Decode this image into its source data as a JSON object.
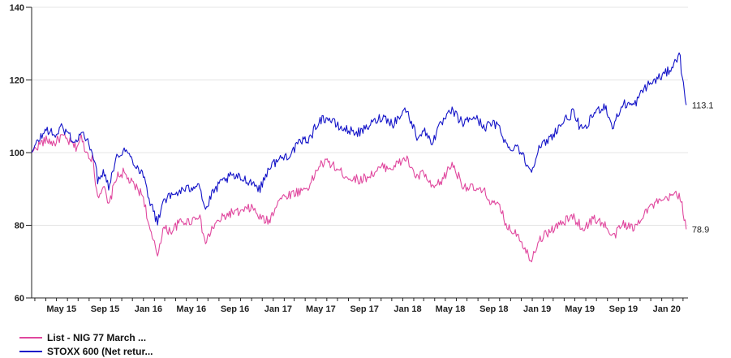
{
  "chart_data": {
    "type": "line",
    "title": "",
    "xlabel": "",
    "ylabel": "",
    "ylim": [
      60,
      140
    ],
    "y_ticks": [
      60,
      80,
      100,
      120,
      140
    ],
    "y_tick_labels": [
      "60",
      "80",
      "100",
      "120",
      "140"
    ],
    "x_tick_labels": [
      "May 15",
      "Sep 15",
      "Jan 16",
      "May 16",
      "Sep 16",
      "Jan 17",
      "May 17",
      "Sep 17",
      "Jan 18",
      "May 18",
      "Sep 18",
      "Jan 19",
      "May 19",
      "Sep 19",
      "Jan 20"
    ],
    "x_tick_dates": [
      "2015-05",
      "2015-09",
      "2016-01",
      "2016-05",
      "2016-09",
      "2017-01",
      "2017-05",
      "2017-09",
      "2018-01",
      "2018-05",
      "2018-09",
      "2019-01",
      "2019-05",
      "2019-09",
      "2020-01"
    ],
    "xlim": [
      "2015-02-20",
      "2020-03-15"
    ],
    "grid": true,
    "legend_position": "bottom-left",
    "series": [
      {
        "name": "List - NIG 77 March ...",
        "color": "#e0479e",
        "end_label": "78.9",
        "points": [
          [
            "2015-02-20",
            100
          ],
          [
            "2015-03-15",
            102.5
          ],
          [
            "2015-04-05",
            103.5
          ],
          [
            "2015-04-25",
            102.5
          ],
          [
            "2015-05-15",
            104.5
          ],
          [
            "2015-06-05",
            103
          ],
          [
            "2015-06-25",
            101.5
          ],
          [
            "2015-07-10",
            104
          ],
          [
            "2015-07-25",
            100
          ],
          [
            "2015-08-10",
            98.5
          ],
          [
            "2015-08-25",
            88
          ],
          [
            "2015-09-10",
            91
          ],
          [
            "2015-09-25",
            85
          ],
          [
            "2015-10-15",
            93
          ],
          [
            "2015-11-05",
            94.5
          ],
          [
            "2015-11-25",
            92
          ],
          [
            "2015-12-15",
            90
          ],
          [
            "2016-01-01",
            88
          ],
          [
            "2016-01-20",
            78
          ],
          [
            "2016-02-10",
            72
          ],
          [
            "2016-02-25",
            79
          ],
          [
            "2016-03-20",
            78.5
          ],
          [
            "2016-04-15",
            81
          ],
          [
            "2016-05-10",
            81
          ],
          [
            "2016-06-05",
            83
          ],
          [
            "2016-06-24",
            75
          ],
          [
            "2016-07-15",
            79.5
          ],
          [
            "2016-08-10",
            82
          ],
          [
            "2016-09-05",
            83.5
          ],
          [
            "2016-10-01",
            83.5
          ],
          [
            "2016-11-01",
            85
          ],
          [
            "2016-11-25",
            82
          ],
          [
            "2016-12-20",
            81
          ],
          [
            "2017-01-15",
            87
          ],
          [
            "2017-02-15",
            88.5
          ],
          [
            "2017-03-20",
            89.5
          ],
          [
            "2017-04-15",
            91
          ],
          [
            "2017-05-10",
            96.5
          ],
          [
            "2017-06-05",
            97.5
          ],
          [
            "2017-07-05",
            95
          ],
          [
            "2017-08-05",
            93
          ],
          [
            "2017-09-05",
            92.5
          ],
          [
            "2017-10-05",
            94
          ],
          [
            "2017-11-05",
            96
          ],
          [
            "2017-12-05",
            96
          ],
          [
            "2018-01-10",
            98.5
          ],
          [
            "2018-02-10",
            93
          ],
          [
            "2018-03-01",
            94.5
          ],
          [
            "2018-03-25",
            90
          ],
          [
            "2018-04-20",
            92
          ],
          [
            "2018-05-20",
            97
          ],
          [
            "2018-06-20",
            91
          ],
          [
            "2018-07-20",
            90
          ],
          [
            "2018-08-20",
            89
          ],
          [
            "2018-09-10",
            86
          ],
          [
            "2018-10-01",
            85
          ],
          [
            "2018-10-25",
            79
          ],
          [
            "2018-11-20",
            78
          ],
          [
            "2018-12-27",
            70.5
          ],
          [
            "2019-01-20",
            76
          ],
          [
            "2019-02-20",
            78.5
          ],
          [
            "2019-03-25",
            80.5
          ],
          [
            "2019-04-25",
            82.5
          ],
          [
            "2019-05-25",
            79
          ],
          [
            "2019-06-25",
            82
          ],
          [
            "2019-07-25",
            80
          ],
          [
            "2019-08-15",
            76.5
          ],
          [
            "2019-09-15",
            80.5
          ],
          [
            "2019-10-15",
            79
          ],
          [
            "2019-11-15",
            84
          ],
          [
            "2019-12-15",
            86
          ],
          [
            "2020-01-15",
            87
          ],
          [
            "2020-02-10",
            89
          ],
          [
            "2020-02-22",
            88
          ],
          [
            "2020-03-01",
            84
          ],
          [
            "2020-03-10",
            78.9
          ]
        ]
      },
      {
        "name": "STOXX 600 (Net retur...",
        "color": "#1414c8",
        "end_label": "113.1",
        "points": [
          [
            "2015-02-20",
            100
          ],
          [
            "2015-03-15",
            104
          ],
          [
            "2015-04-05",
            106.5
          ],
          [
            "2015-04-25",
            104.5
          ],
          [
            "2015-05-15",
            107
          ],
          [
            "2015-06-05",
            105
          ],
          [
            "2015-06-25",
            102.5
          ],
          [
            "2015-07-10",
            106
          ],
          [
            "2015-07-25",
            103
          ],
          [
            "2015-08-10",
            101
          ],
          [
            "2015-08-25",
            92.5
          ],
          [
            "2015-09-10",
            95
          ],
          [
            "2015-09-25",
            91
          ],
          [
            "2015-10-15",
            98
          ],
          [
            "2015-11-05",
            101
          ],
          [
            "2015-11-25",
            99
          ],
          [
            "2015-12-15",
            96
          ],
          [
            "2016-01-01",
            94
          ],
          [
            "2016-01-20",
            86.5
          ],
          [
            "2016-02-10",
            80.5
          ],
          [
            "2016-02-25",
            87
          ],
          [
            "2016-03-20",
            88
          ],
          [
            "2016-04-15",
            89.5
          ],
          [
            "2016-05-10",
            90
          ],
          [
            "2016-06-05",
            92
          ],
          [
            "2016-06-24",
            84
          ],
          [
            "2016-07-15",
            89
          ],
          [
            "2016-08-10",
            92
          ],
          [
            "2016-09-05",
            93.5
          ],
          [
            "2016-10-01",
            93
          ],
          [
            "2016-11-01",
            92
          ],
          [
            "2016-11-25",
            90
          ],
          [
            "2016-12-20",
            96
          ],
          [
            "2017-01-15",
            98
          ],
          [
            "2017-02-15",
            99.5
          ],
          [
            "2017-03-20",
            103
          ],
          [
            "2017-04-15",
            104
          ],
          [
            "2017-05-10",
            109
          ],
          [
            "2017-06-05",
            109.5
          ],
          [
            "2017-07-05",
            107
          ],
          [
            "2017-08-05",
            106
          ],
          [
            "2017-09-05",
            105.5
          ],
          [
            "2017-10-05",
            108
          ],
          [
            "2017-11-05",
            110
          ],
          [
            "2017-12-05",
            108
          ],
          [
            "2018-01-10",
            112
          ],
          [
            "2018-02-10",
            104.5
          ],
          [
            "2018-03-01",
            106
          ],
          [
            "2018-03-25",
            103
          ],
          [
            "2018-04-20",
            108
          ],
          [
            "2018-05-20",
            111.5
          ],
          [
            "2018-06-20",
            108
          ],
          [
            "2018-07-20",
            110
          ],
          [
            "2018-08-20",
            107
          ],
          [
            "2018-09-10",
            108
          ],
          [
            "2018-10-01",
            107
          ],
          [
            "2018-10-25",
            101
          ],
          [
            "2018-11-20",
            102
          ],
          [
            "2018-12-27",
            95
          ],
          [
            "2019-01-20",
            101
          ],
          [
            "2019-02-20",
            104
          ],
          [
            "2019-03-25",
            108
          ],
          [
            "2019-04-25",
            111
          ],
          [
            "2019-05-25",
            105.5
          ],
          [
            "2019-06-25",
            111
          ],
          [
            "2019-07-25",
            113
          ],
          [
            "2019-08-15",
            107
          ],
          [
            "2019-09-15",
            113.5
          ],
          [
            "2019-10-15",
            113
          ],
          [
            "2019-11-15",
            118
          ],
          [
            "2019-12-15",
            120
          ],
          [
            "2020-01-15",
            122
          ],
          [
            "2020-02-10",
            125
          ],
          [
            "2020-02-19",
            128.5
          ],
          [
            "2020-02-28",
            120
          ],
          [
            "2020-03-05",
            117
          ],
          [
            "2020-03-10",
            113.1
          ]
        ]
      }
    ]
  },
  "legend": {
    "items": [
      {
        "label": "List - NIG 77 March ...",
        "color": "#e0479e"
      },
      {
        "label": "STOXX 600 (Net retur...",
        "color": "#1414c8"
      }
    ]
  }
}
